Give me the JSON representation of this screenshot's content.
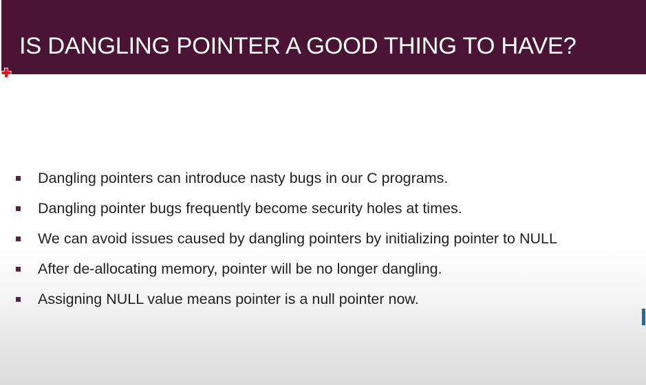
{
  "slide": {
    "title": "IS DANGLING POINTER A GOOD THING TO HAVE?",
    "bullets": [
      "Dangling pointers can introduce nasty bugs in our C programs.",
      "Dangling pointer bugs frequently become security holes at times.",
      "We can avoid issues caused by dangling pointers by initializing pointer to NULL",
      "After de-allocating memory,  pointer will be no longer dangling.",
      "Assigning NULL value means pointer is a null pointer now."
    ]
  },
  "colors": {
    "title_bar": "#4b1434",
    "title_text": "#ffffff",
    "bullet_marker": "#5a2142",
    "body_text": "#222222",
    "cursor": "#e8141c"
  },
  "icons": {
    "cursor": "red-cross-cursor-icon"
  }
}
